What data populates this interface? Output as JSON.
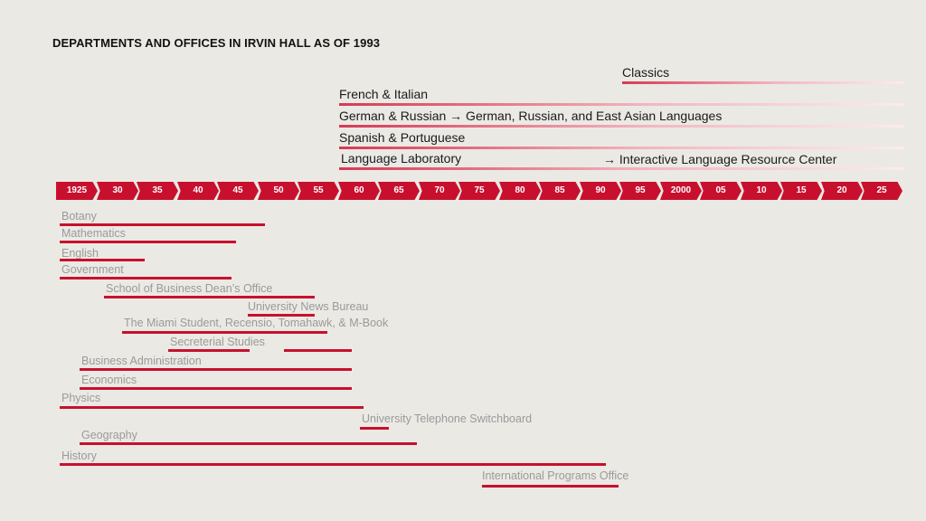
{
  "title": "DEPARTMENTS AND OFFICES IN IRVIN HALL AS OF 1993",
  "timeline": {
    "ticks": [
      "1925",
      "30",
      "35",
      "40",
      "45",
      "50",
      "55",
      "60",
      "65",
      "70",
      "75",
      "80",
      "85",
      "90",
      "95",
      "2000",
      "05",
      "10",
      "15",
      "20",
      "25"
    ]
  },
  "upper": {
    "classics": "Classics",
    "french": "French & Italian",
    "german": "German & Russian → German, Russian, and East Asian Languages",
    "spanish": "Spanish & Portuguese",
    "lab": "Language Laboratory",
    "lab_next": "→ Interactive Language Resource Center"
  },
  "lower": {
    "botany": "Botany",
    "mathematics": "Mathematics",
    "english": "English",
    "government": "Government",
    "business_dean": "School of Business Dean’s Office",
    "news_bureau": "University News Bureau",
    "student_pubs": "The Miami Student, Recensio, Tomahawk, & M-Book",
    "secreterial": "Secreterial Studies",
    "business_admin": "Business Administration",
    "economics": "Economics",
    "physics": "Physics",
    "switchboard": "University Telephone Switchboard",
    "geography": "Geography",
    "history": "History",
    "international": "International Programs Office"
  },
  "colors": {
    "accent": "#c8102e",
    "background": "#ebe9e4",
    "upper_text": "#1a1a1a",
    "lower_text": "#9a9a9a"
  }
}
